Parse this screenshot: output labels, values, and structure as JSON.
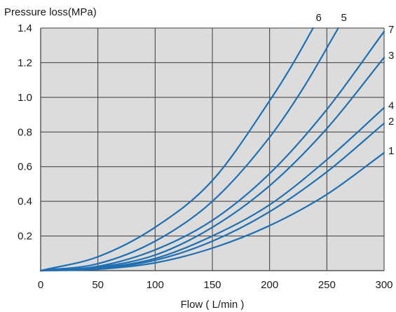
{
  "chart_data": {
    "type": "line",
    "ylabel": "Pressure loss(MPa)",
    "xlabel": "Flow ( L/min )",
    "xlim": [
      0,
      300
    ],
    "ylim": [
      0,
      1.4
    ],
    "x_ticks": [
      0,
      50,
      100,
      150,
      200,
      250,
      300
    ],
    "x_tick_labels": [
      "0",
      "50",
      "100",
      "150",
      "200",
      "250",
      "300"
    ],
    "y_ticks": [
      0.2,
      0.4,
      0.6,
      0.8,
      1.0,
      1.2,
      1.4
    ],
    "y_tick_labels": [
      "0.2",
      "0.4",
      "0.6",
      "0.8",
      "1.0",
      "1.2",
      "1.4"
    ],
    "grid": true,
    "plot_background": "#dcdcdc",
    "grid_color": "#3a3a3a",
    "line_color": "#1f6fb2",
    "series": [
      {
        "name": "1",
        "x": [
          0,
          50,
          100,
          150,
          200,
          250,
          300
        ],
        "values": [
          0,
          0.008,
          0.045,
          0.13,
          0.26,
          0.44,
          0.68
        ]
      },
      {
        "name": "2",
        "x": [
          0,
          50,
          100,
          150,
          200,
          250,
          300
        ],
        "values": [
          0,
          0.012,
          0.06,
          0.17,
          0.34,
          0.57,
          0.85
        ]
      },
      {
        "name": "4",
        "x": [
          0,
          50,
          100,
          150,
          200,
          250,
          300
        ],
        "values": [
          0,
          0.015,
          0.07,
          0.2,
          0.38,
          0.64,
          0.94
        ]
      },
      {
        "name": "3",
        "x": [
          0,
          50,
          100,
          150,
          200,
          250,
          300
        ],
        "values": [
          0,
          0.02,
          0.09,
          0.25,
          0.49,
          0.82,
          1.23
        ]
      },
      {
        "name": "7",
        "x": [
          0,
          50,
          100,
          150,
          200,
          250,
          300
        ],
        "values": [
          0,
          0.025,
          0.12,
          0.29,
          0.56,
          0.93,
          1.38
        ]
      },
      {
        "name": "5",
        "x": [
          0,
          50,
          100,
          150,
          200,
          230,
          260
        ],
        "values": [
          0,
          0.04,
          0.17,
          0.4,
          0.77,
          1.06,
          1.4
        ]
      },
      {
        "name": "6",
        "x": [
          0,
          50,
          100,
          150,
          200,
          220,
          238
        ],
        "values": [
          0,
          0.08,
          0.25,
          0.52,
          0.98,
          1.19,
          1.4
        ]
      }
    ]
  }
}
